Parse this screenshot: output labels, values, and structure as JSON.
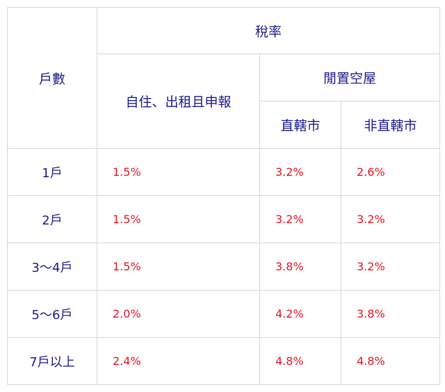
{
  "headers": {
    "units": "戶數",
    "tax_rate": "稅率",
    "self_use": "自住、出租且申報",
    "vacant": "閒置空屋",
    "municipality": "直轄市",
    "non_municipality": "非直轄市"
  },
  "rows": [
    {
      "units": "1戶",
      "self_use": "1.5%",
      "municipality": "3.2%",
      "non_municipality": "2.6%"
    },
    {
      "units": "2戶",
      "self_use": "1.5%",
      "municipality": "3.2%",
      "non_municipality": "3.2%"
    },
    {
      "units": "3～4戶",
      "self_use": "1.5%",
      "municipality": "3.8%",
      "non_municipality": "3.2%"
    },
    {
      "units": "5～6戶",
      "self_use": "2.0%",
      "municipality": "4.2%",
      "non_municipality": "3.8%"
    },
    {
      "units": "7戶以上",
      "self_use": "2.4%",
      "municipality": "4.8%",
      "non_municipality": "4.8%"
    }
  ],
  "colors": {
    "header_text": "#1a1a8c",
    "value_text": "#e4141e",
    "border": "#d6d6d6"
  }
}
